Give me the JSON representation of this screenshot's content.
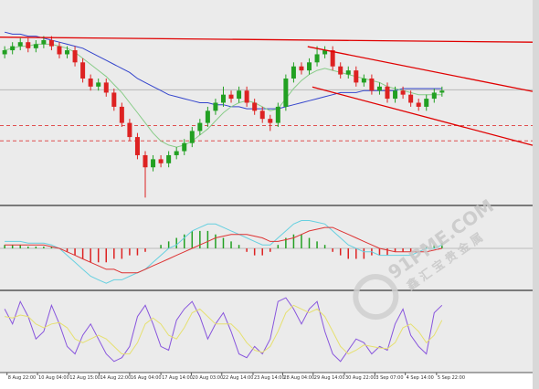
{
  "chart_data": {
    "type": "candlestick",
    "xlim": [
      -0.6,
      67.6
    ],
    "ylim": [
      0,
      100
    ],
    "up_color": "#22a022",
    "down_color": "#dd2222",
    "open": [
      74,
      76,
      78,
      80,
      77,
      79,
      81,
      78,
      74,
      76,
      70,
      62,
      58,
      60,
      55,
      48,
      40,
      33,
      24,
      18,
      22,
      20,
      24,
      26,
      30,
      36,
      40,
      46,
      50,
      54,
      52,
      56,
      50,
      46,
      42,
      40,
      48,
      62,
      68,
      66,
      70,
      74,
      76,
      68,
      64,
      66,
      60,
      62,
      56,
      58,
      52,
      56,
      54,
      50,
      48,
      52,
      55
    ],
    "high": [
      78,
      80,
      82,
      82,
      81,
      83,
      83,
      80,
      78,
      78,
      72,
      64,
      62,
      62,
      57,
      50,
      42,
      35,
      26,
      24,
      24,
      26,
      28,
      32,
      38,
      42,
      48,
      52,
      58,
      56,
      58,
      58,
      52,
      48,
      44,
      50,
      64,
      70,
      70,
      72,
      78,
      78,
      78,
      70,
      68,
      68,
      64,
      64,
      60,
      60,
      58,
      58,
      56,
      52,
      54,
      57,
      58
    ],
    "low": [
      72,
      74,
      76,
      75,
      75,
      77,
      76,
      72,
      72,
      68,
      60,
      56,
      56,
      53,
      46,
      38,
      31,
      22,
      3,
      16,
      18,
      18,
      22,
      24,
      28,
      34,
      38,
      44,
      48,
      50,
      50,
      48,
      44,
      40,
      36,
      38,
      46,
      60,
      64,
      64,
      68,
      72,
      66,
      62,
      62,
      58,
      58,
      54,
      54,
      50,
      50,
      52,
      48,
      46,
      46,
      50,
      53
    ],
    "close": [
      76,
      78,
      80,
      77,
      79,
      81,
      78,
      74,
      76,
      70,
      62,
      58,
      60,
      55,
      48,
      40,
      33,
      24,
      18,
      22,
      20,
      24,
      26,
      30,
      36,
      40,
      46,
      50,
      54,
      52,
      56,
      50,
      46,
      42,
      40,
      48,
      62,
      68,
      66,
      70,
      74,
      76,
      68,
      64,
      66,
      60,
      62,
      56,
      58,
      52,
      56,
      54,
      50,
      48,
      52,
      55,
      56
    ],
    "overlays": [
      {
        "color": "#3344cc",
        "values": [
          85,
          84,
          84,
          83,
          83,
          82,
          81,
          80,
          79,
          78,
          77,
          75,
          73,
          71,
          69,
          67,
          65,
          62,
          60,
          58,
          56,
          54,
          53,
          52,
          51,
          50,
          50,
          49,
          49,
          48,
          48,
          47,
          47,
          47,
          47,
          47,
          48,
          49,
          50,
          51,
          52,
          53,
          54,
          55,
          55,
          55,
          56,
          56,
          56,
          56,
          56,
          57,
          57,
          57,
          57,
          57,
          57
        ]
      },
      {
        "color": "#88cc88",
        "values": [
          76,
          77,
          78,
          78,
          79,
          79,
          79,
          78,
          77,
          75,
          72,
          69,
          66,
          63,
          59,
          55,
          50,
          45,
          40,
          35,
          31,
          29,
          28,
          29,
          31,
          34,
          37,
          41,
          45,
          48,
          50,
          51,
          50,
          48,
          46,
          47,
          52,
          57,
          61,
          64,
          66,
          67,
          66,
          65,
          64,
          63,
          62,
          61,
          60,
          58,
          57,
          56,
          55,
          54,
          54,
          54,
          54
        ]
      }
    ],
    "trendlines": [
      {
        "color": "#e00000",
        "x": [
          -0.6,
          67.6
        ],
        "y": [
          82.5,
          80
        ]
      },
      {
        "color": "#e00000",
        "x": [
          38.8,
          67.6
        ],
        "y": [
          77.8,
          55.6
        ]
      },
      {
        "color": "#e00000",
        "x": [
          39.4,
          67.6
        ],
        "y": [
          57.8,
          28.9
        ]
      }
    ],
    "hlines": [
      {
        "color": "#e05050",
        "dashed": true,
        "y": 38.7
      },
      {
        "color": "#e05050",
        "dashed": true,
        "y": 31.1
      },
      {
        "color": "#b8b8b8",
        "dashed": false,
        "y": 56.4
      }
    ],
    "xticks": [
      {
        "value": 0.3,
        "label": "8 Aug 22:00"
      },
      {
        "value": 4.2,
        "label": "10 Aug 04:00"
      },
      {
        "value": 8.2,
        "label": "12 Aug 15:00"
      },
      {
        "value": 12.1,
        "label": "14 Aug 22:00"
      },
      {
        "value": 16,
        "label": "16 Aug 04:00"
      },
      {
        "value": 20,
        "label": "17 Aug 14:00"
      },
      {
        "value": 23.9,
        "label": "20 Aug 03:00"
      },
      {
        "value": 27.8,
        "label": "22 Aug 14:00"
      },
      {
        "value": 31.8,
        "label": "23 Aug 14:00"
      },
      {
        "value": 35.6,
        "label": "28 Aug 04:00"
      },
      {
        "value": 39.5,
        "label": "29 Aug 14:00"
      },
      {
        "value": 43.5,
        "label": "30 Aug 22:00"
      },
      {
        "value": 47.4,
        "label": "3 Sep 07:00"
      },
      {
        "value": 51.3,
        "label": "4 Sep 14:00"
      },
      {
        "value": 55.3,
        "label": "5 Sep 22:00"
      }
    ],
    "indicators": [
      {
        "type": "macd",
        "ylim": [
          -11,
          11
        ],
        "levels": [
          0
        ],
        "pos_color": "#22a022",
        "neg_color": "#dd2222",
        "histogram": [
          1,
          1,
          1,
          0.5,
          0.5,
          0.5,
          0.5,
          0,
          -1,
          -2,
          -3,
          -4,
          -4,
          -4,
          -3,
          -3,
          -2,
          -2,
          -1,
          0,
          1,
          2,
          3,
          4,
          5,
          5,
          5,
          4,
          3,
          2,
          1,
          -1,
          -2,
          -2,
          -1,
          1,
          3,
          4,
          4,
          3,
          2,
          1,
          -1,
          -2,
          -3,
          -3,
          -3,
          -2,
          -2,
          -2,
          -1,
          -1,
          -1,
          0,
          0.5,
          1,
          1.5
        ],
        "series": [
          {
            "color": "#66d0e0",
            "values": [
              2,
              2,
              2,
              1.5,
              1.5,
              1.5,
              1,
              0,
              -2,
              -4,
              -6,
              -8,
              -9,
              -10,
              -9,
              -9,
              -8,
              -7,
              -6,
              -4,
              -2,
              0,
              1,
              3,
              5,
              6,
              7,
              7,
              6,
              5,
              4,
              3,
              2,
              1,
              1,
              3,
              5,
              7,
              8,
              8,
              7.5,
              7,
              5,
              3,
              1,
              0,
              -1,
              -1,
              -2,
              -2,
              -2,
              -2,
              -2,
              -1,
              0,
              0,
              1
            ]
          },
          {
            "color": "#dd3333",
            "values": [
              1,
              1,
              1,
              1,
              1,
              1,
              0.5,
              0,
              -1,
              -2,
              -3,
              -4,
              -5,
              -6,
              -6,
              -7,
              -7,
              -7,
              -6,
              -5,
              -4,
              -3,
              -2,
              -1,
              0,
              1,
              2,
              3,
              3.5,
              4,
              4,
              4,
              3.5,
              3,
              2,
              2,
              2.5,
              3,
              4,
              5,
              5.5,
              6,
              6,
              5,
              4,
              3,
              2,
              1,
              0,
              -0.5,
              -1,
              -1,
              -1,
              -1,
              -1,
              -0.5,
              0
            ]
          }
        ]
      },
      {
        "type": "stochastic",
        "ylim": [
          0,
          100
        ],
        "series": [
          {
            "color": "#8855dd",
            "values": [
              80,
              60,
              90,
              70,
              40,
              50,
              85,
              60,
              30,
              20,
              45,
              60,
              40,
              20,
              10,
              15,
              30,
              70,
              85,
              60,
              30,
              25,
              65,
              80,
              90,
              70,
              40,
              60,
              75,
              50,
              20,
              15,
              30,
              20,
              40,
              90,
              95,
              80,
              60,
              80,
              90,
              50,
              20,
              10,
              25,
              40,
              35,
              20,
              30,
              25,
              60,
              80,
              45,
              30,
              20,
              75,
              85
            ]
          },
          {
            "color": "#e6e070",
            "values": [
              70,
              68,
              72,
              70,
              60,
              55,
              60,
              62,
              55,
              40,
              35,
              40,
              45,
              40,
              30,
              20,
              20,
              35,
              60,
              68,
              60,
              45,
              40,
              55,
              75,
              80,
              70,
              60,
              60,
              60,
              50,
              35,
              25,
              22,
              30,
              50,
              75,
              85,
              80,
              75,
              80,
              70,
              50,
              30,
              20,
              25,
              32,
              30,
              28,
              27,
              35,
              55,
              60,
              50,
              35,
              45,
              65
            ]
          }
        ]
      }
    ]
  },
  "watermark": {
    "brand": "91PME.COM",
    "name": "鑫汇宝贵金属"
  }
}
